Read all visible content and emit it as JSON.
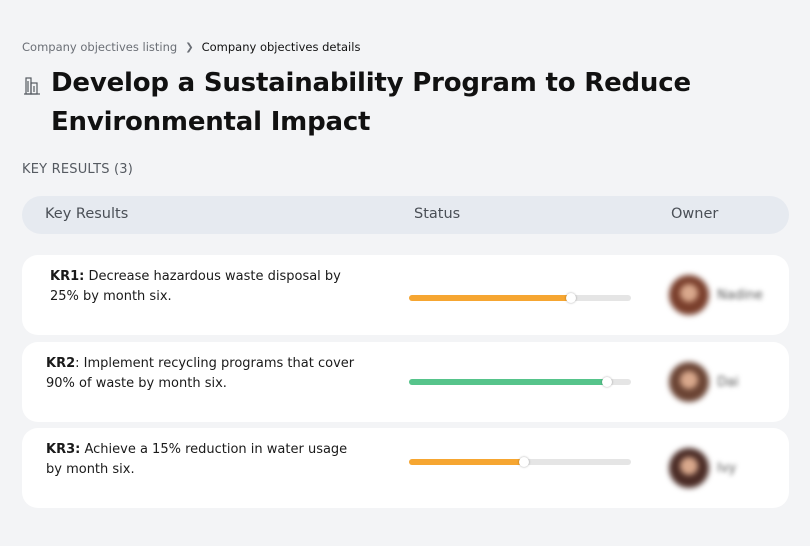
{
  "breadcrumb": {
    "parent": "Company objectives listing",
    "current": "Company objectives details"
  },
  "objective": {
    "icon": "building-icon",
    "title": "Develop a Sustainability Program to Reduce Environmental Impact"
  },
  "key_results_label": "KEY RESULTS (3)",
  "table": {
    "headers": {
      "key_results": "Key Results",
      "status": "Status",
      "owner": "Owner"
    },
    "rows": [
      {
        "id": "KR1:",
        "text": " Decrease hazardous waste disposal by 25% by month six.",
        "progress": 0.73,
        "color": "#f6a631",
        "owner": "Nadine",
        "avatar_color": "#7a3f2c"
      },
      {
        "id": "KR2",
        "text": ": Implement recycling programs that cover 90% of waste by month six.",
        "progress": 0.89,
        "color": "#56c48b",
        "owner": "Dai",
        "avatar_color": "#6b4434"
      },
      {
        "id": "KR3:",
        "text": " Achieve a 15% reduction in water usage by month six.",
        "progress": 0.52,
        "color": "#f6a631",
        "owner": "Ivy",
        "avatar_color": "#4b2c26"
      }
    ]
  }
}
